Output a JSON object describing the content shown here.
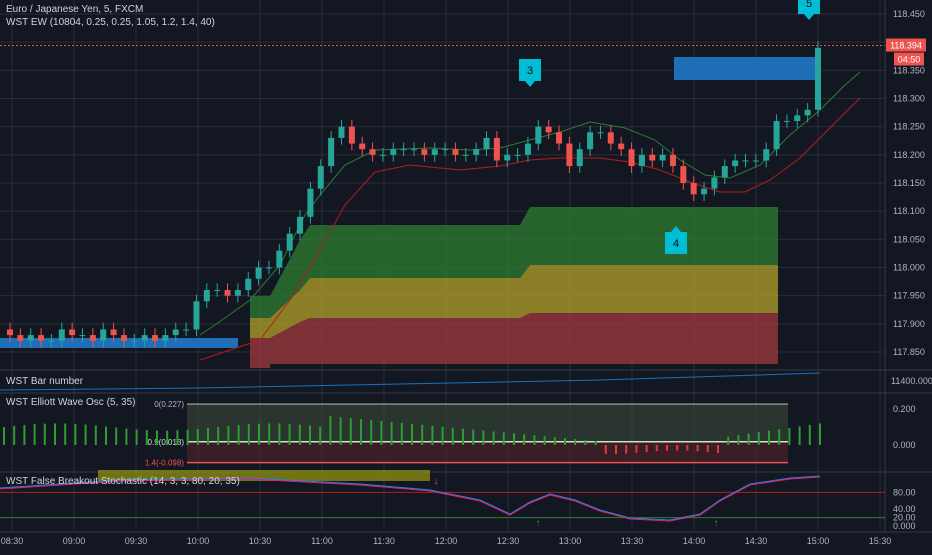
{
  "header": {
    "symbol": "Euro / Japanese Yen, 5, FXCM",
    "indicator_ew": "WST EW (10804, 0.25, 0.25, 1.05, 1.2, 1.4, 40)"
  },
  "panes": {
    "bar_number": "WST Bar number",
    "elliott_osc": "WST Elliott Wave Osc (5, 35)",
    "stochastic": "WST False Breakout Stochastic (14, 3, 3, 80, 20, 35)"
  },
  "price_badge": {
    "value": "118.394",
    "countdown": "04:50"
  },
  "wave_labels": {
    "w3": "3",
    "w4": "4",
    "w5": "5"
  },
  "osc_levels": {
    "top": "0(0.227)",
    "mid": "0.9(0.018)",
    "low": "1.4(-0.098)"
  },
  "colors": {
    "bg": "#131722",
    "up": "#26a69a",
    "down": "#ef5350",
    "grid": "#2a2e39",
    "text": "#b2b5be",
    "accent": "#1e6fb8",
    "cyan": "#00bcd4"
  },
  "chart_data": [
    {
      "type": "candlestick",
      "title": "Euro / Japanese Yen, 5, FXCM",
      "ylim": [
        117.82,
        118.49
      ],
      "yticks": [
        "117.850",
        "117.900",
        "117.950",
        "118.000",
        "118.050",
        "118.100",
        "118.150",
        "118.200",
        "118.250",
        "118.300",
        "118.350",
        "118.400",
        "118.450"
      ],
      "xticks": [
        "08:30",
        "09:00",
        "09:30",
        "10:00",
        "10:30",
        "11:00",
        "11:30",
        "12:00",
        "12:30",
        "13:00",
        "13:30",
        "14:00",
        "14:30",
        "15:00",
        "15:30"
      ],
      "x": [
        "08:30",
        "08:35",
        "08:40",
        "08:45",
        "08:50",
        "08:55",
        "09:00",
        "09:05",
        "09:10",
        "09:15",
        "09:20",
        "09:25",
        "09:30",
        "09:35",
        "09:40",
        "09:45",
        "09:50",
        "09:55",
        "10:00",
        "10:05",
        "10:10",
        "10:15",
        "10:20",
        "10:25",
        "10:30",
        "10:35",
        "10:40",
        "10:45",
        "10:50",
        "10:55",
        "11:00",
        "11:05",
        "11:10",
        "11:15",
        "11:20",
        "11:25",
        "11:30",
        "11:35",
        "11:40",
        "11:45",
        "11:50",
        "11:55",
        "12:00",
        "12:05",
        "12:10",
        "12:15",
        "12:20",
        "12:25",
        "12:30",
        "12:35",
        "12:40",
        "12:45",
        "12:50",
        "12:55",
        "13:00",
        "13:05",
        "13:10",
        "13:15",
        "13:20",
        "13:25",
        "13:30",
        "13:35",
        "13:40",
        "13:45",
        "13:50",
        "13:55",
        "14:00",
        "14:05",
        "14:10",
        "14:15",
        "14:20",
        "14:25",
        "14:30",
        "14:35",
        "14:40",
        "14:45",
        "14:50",
        "14:55",
        "15:00"
      ],
      "open": [
        117.89,
        117.88,
        117.87,
        117.88,
        117.87,
        117.87,
        117.89,
        117.88,
        117.88,
        117.87,
        117.89,
        117.88,
        117.87,
        117.87,
        117.88,
        117.87,
        117.88,
        117.89,
        117.89,
        117.94,
        117.96,
        117.96,
        117.95,
        117.96,
        117.98,
        118.0,
        118.0,
        118.03,
        118.06,
        118.09,
        118.14,
        118.18,
        118.23,
        118.25,
        118.22,
        118.21,
        118.2,
        118.2,
        118.21,
        118.21,
        118.21,
        118.2,
        118.21,
        118.21,
        118.2,
        118.2,
        118.21,
        118.23,
        118.19,
        118.2,
        118.2,
        118.22,
        118.25,
        118.24,
        118.22,
        118.18,
        118.21,
        118.24,
        118.24,
        118.22,
        118.21,
        118.18,
        118.2,
        118.19,
        118.2,
        118.18,
        118.15,
        118.13,
        118.14,
        118.16,
        118.18,
        118.19,
        118.19,
        118.19,
        118.21,
        118.26,
        118.26,
        118.27,
        118.28
      ],
      "close": [
        117.88,
        117.87,
        117.88,
        117.87,
        117.87,
        117.89,
        117.88,
        117.88,
        117.87,
        117.89,
        117.88,
        117.87,
        117.87,
        117.88,
        117.87,
        117.88,
        117.89,
        117.89,
        117.94,
        117.96,
        117.96,
        117.95,
        117.96,
        117.98,
        118.0,
        118.0,
        118.03,
        118.06,
        118.09,
        118.14,
        118.18,
        118.23,
        118.25,
        118.22,
        118.21,
        118.2,
        118.2,
        118.21,
        118.21,
        118.21,
        118.2,
        118.21,
        118.21,
        118.2,
        118.2,
        118.21,
        118.23,
        118.19,
        118.2,
        118.2,
        118.22,
        118.25,
        118.24,
        118.22,
        118.18,
        118.21,
        118.24,
        118.24,
        118.22,
        118.21,
        118.18,
        118.2,
        118.19,
        118.2,
        118.18,
        118.15,
        118.13,
        118.14,
        118.16,
        118.18,
        118.19,
        118.19,
        118.19,
        118.21,
        118.26,
        118.26,
        118.27,
        118.28,
        118.39
      ],
      "overlays": [
        "WST EW green line",
        "WST EW red line",
        "support/resistance zones"
      ]
    },
    {
      "type": "bar",
      "title": "WST Elliott Wave Osc (5, 35)",
      "ylim": [
        -0.06,
        0.27
      ],
      "yticks": [
        "0.200",
        "0.000"
      ],
      "levels": [
        0.227,
        0.018,
        -0.098
      ]
    },
    {
      "type": "line",
      "title": "WST False Breakout Stochastic (14, 3, 3, 80, 20, 35)",
      "ylim": [
        0,
        100
      ],
      "yticks": [
        "80.00",
        "40.00",
        "20.00",
        "0.000"
      ],
      "upper": 80,
      "lower": 20
    }
  ]
}
